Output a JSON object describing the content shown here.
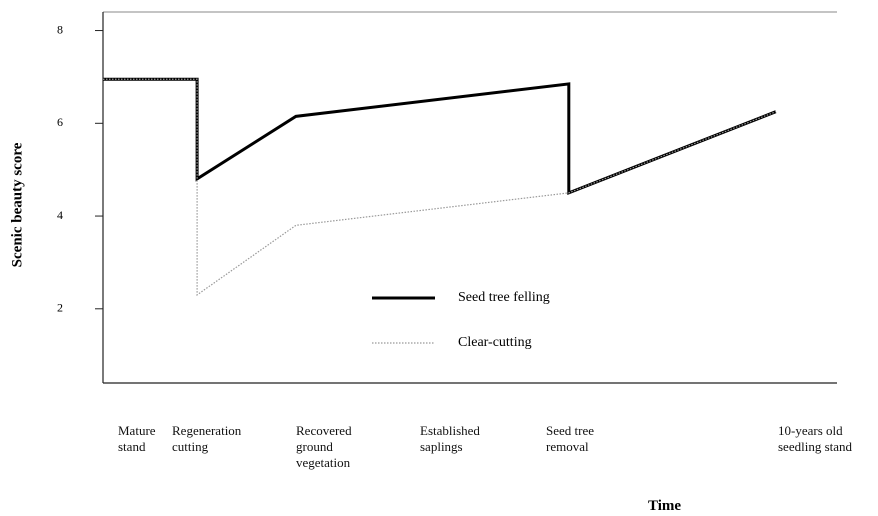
{
  "chart_data": {
    "type": "line",
    "y_label": "Scenic beauty score",
    "x_label": "Time",
    "stages": [
      "Mature stand",
      "Regeneration cutting",
      "Recovered ground vegetation",
      "Established saplings",
      "Seed tree removal",
      "10-years old seedling stand"
    ],
    "xlim": [
      0,
      7.8
    ],
    "ylim": [
      0.4,
      8.4
    ],
    "yticks": [
      2,
      4,
      6,
      8
    ],
    "series": [
      {
        "name": "Seed tree felling",
        "color": "#000000",
        "style": "solid",
        "x": [
          0,
          1,
          1,
          2.05,
          4.95,
          4.95,
          7.15
        ],
        "values": [
          6.95,
          6.95,
          4.8,
          6.15,
          6.85,
          4.5,
          6.25
        ]
      },
      {
        "name": "Clear-cutting",
        "color": "#999999",
        "style": "dotted",
        "x": [
          0,
          1,
          1,
          2.05,
          4.95,
          7.15
        ],
        "values": [
          6.95,
          6.95,
          2.3,
          3.8,
          4.5,
          6.25
        ]
      }
    ]
  }
}
